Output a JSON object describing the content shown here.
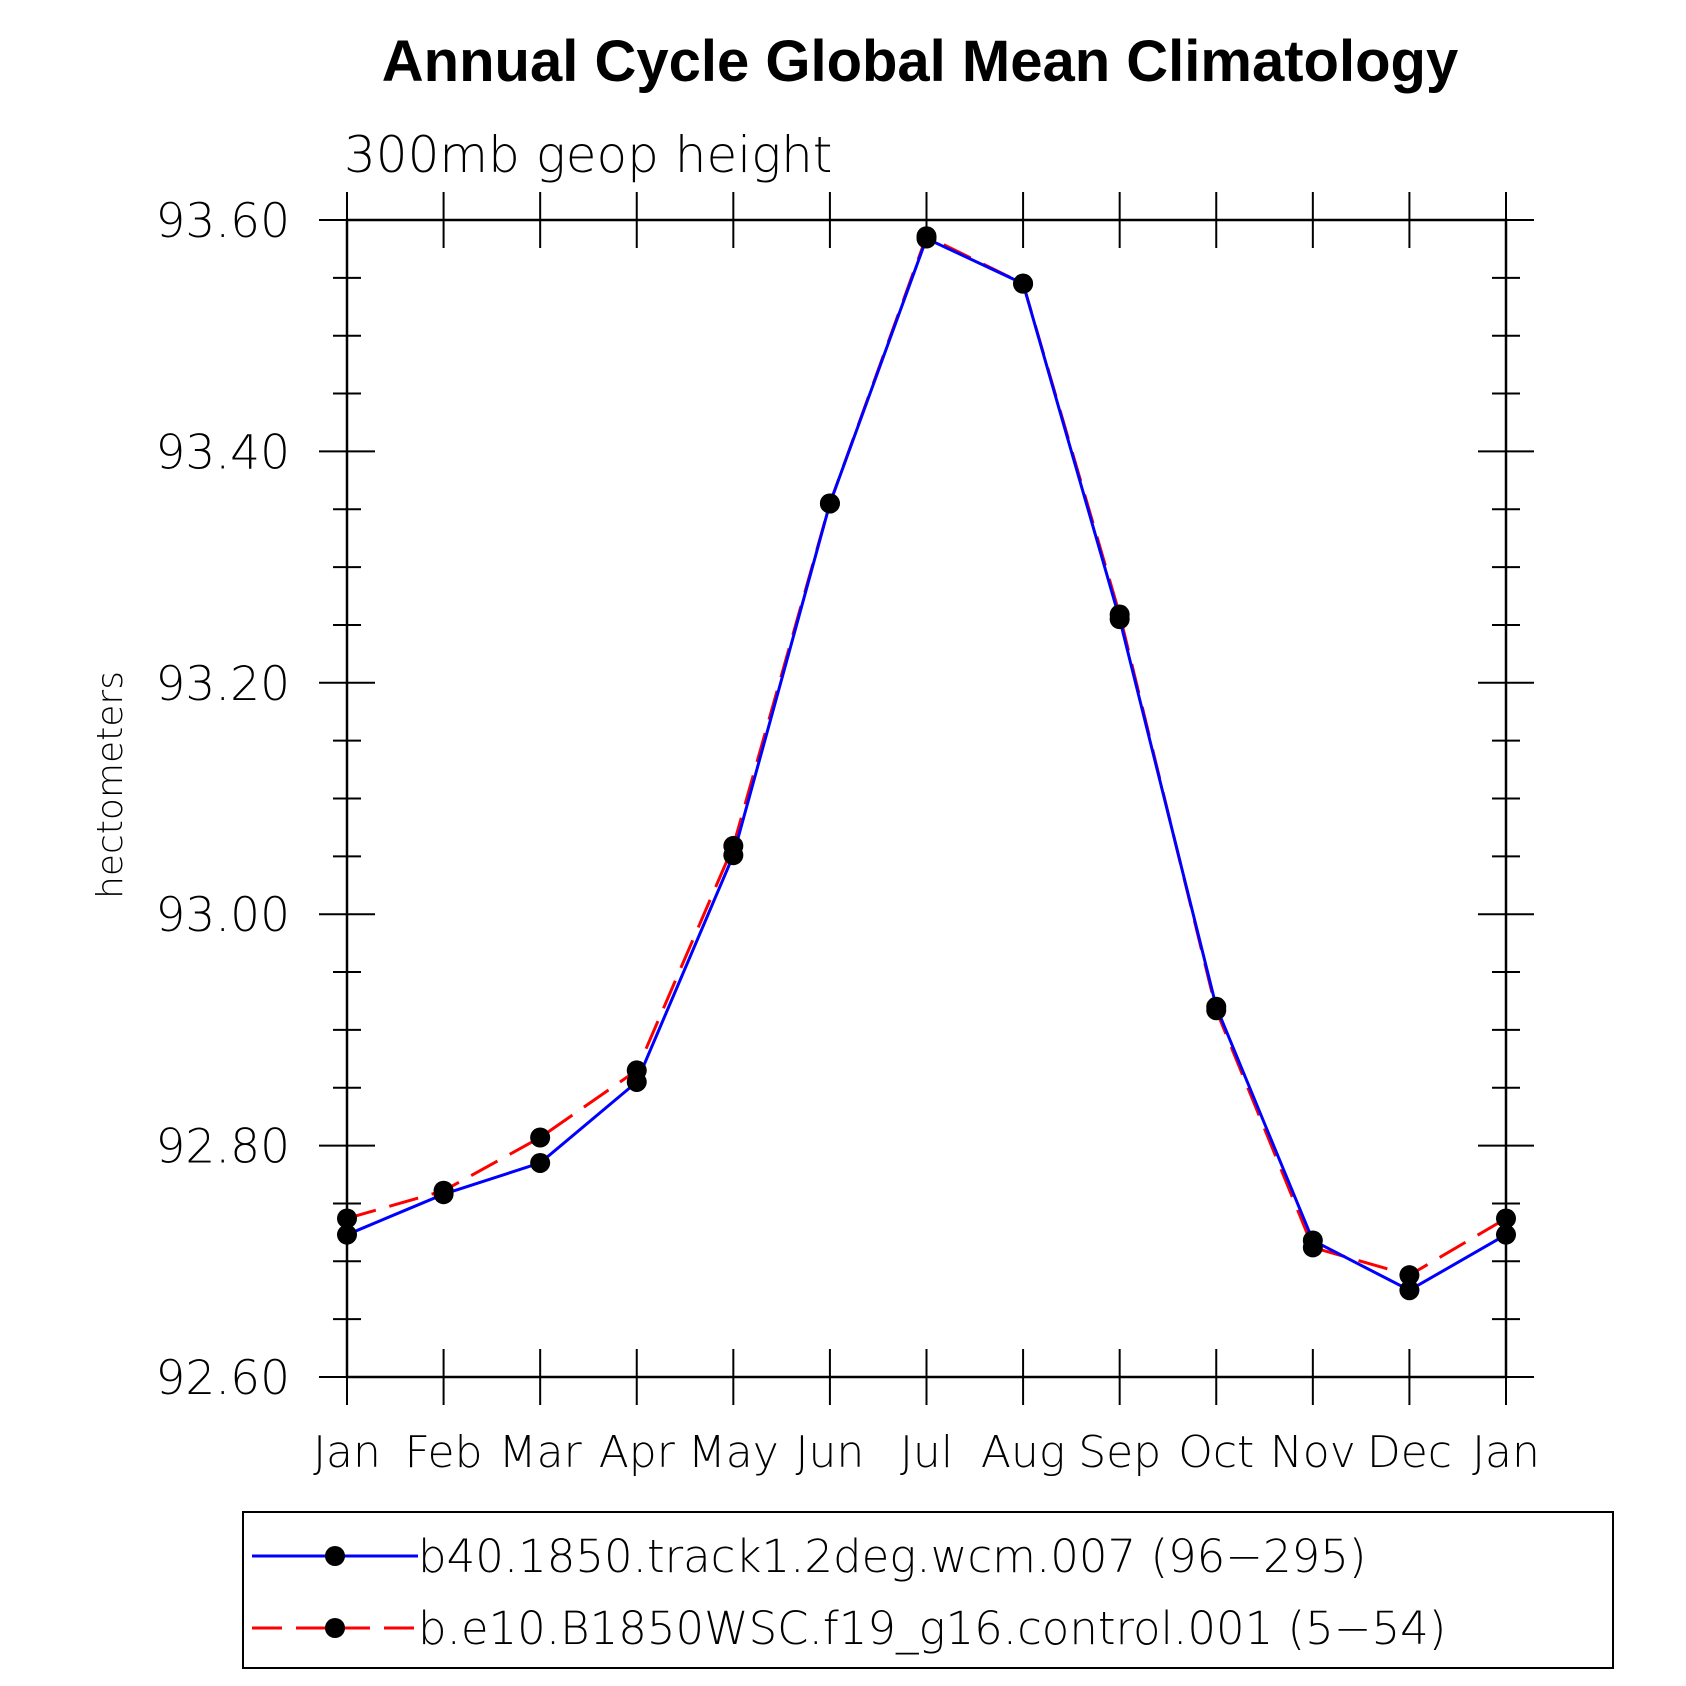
{
  "chart_data": {
    "type": "line",
    "title": "Annual Cycle Global Mean Climatology",
    "subtitle": "300mb geop height",
    "xlabel": "",
    "ylabel": "hectometers",
    "categories": [
      "Jan",
      "Feb",
      "Mar",
      "Apr",
      "May",
      "Jun",
      "Jul",
      "Aug",
      "Sep",
      "Oct",
      "Nov",
      "Dec",
      "Jan"
    ],
    "ylim": [
      92.6,
      93.6
    ],
    "yticks": [
      "92.60",
      "92.80",
      "93.00",
      "93.20",
      "93.40",
      "93.60"
    ],
    "grid": false,
    "legend_position": "bottom",
    "series": [
      {
        "name": "b40.1850.track1.2deg.wcm.007 (96−295)",
        "color": "#0000ff",
        "line_style": "solid",
        "marker": "filled-circle",
        "values": [
          92.723,
          92.758,
          92.785,
          92.855,
          93.051,
          93.355,
          93.584,
          93.545,
          93.255,
          92.92,
          92.718,
          92.675,
          92.723
        ]
      },
      {
        "name": "b.e10.B1850WSC.f19_g16.control.001 (5−54)",
        "color": "#ff0000",
        "line_style": "dashed",
        "marker": "filled-circle",
        "values": [
          92.737,
          92.761,
          92.807,
          92.865,
          93.059,
          93.355,
          93.586,
          93.545,
          93.259,
          92.917,
          92.712,
          92.688,
          92.737
        ]
      }
    ]
  }
}
